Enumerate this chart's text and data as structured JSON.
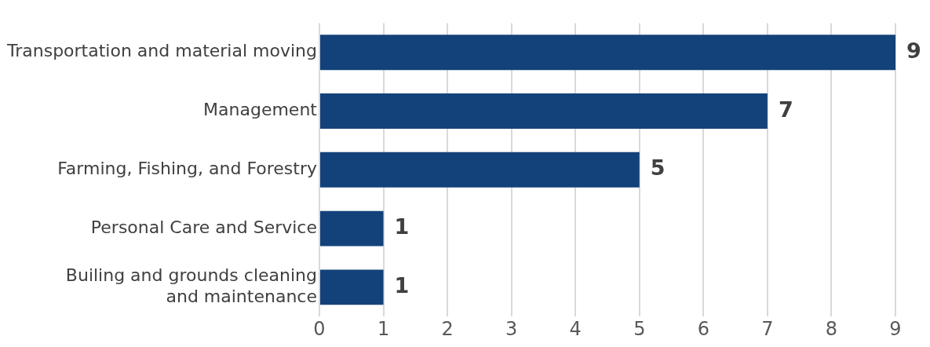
{
  "chart_data": {
    "type": "bar",
    "orientation": "horizontal",
    "categories": [
      "Transportation and material moving",
      "Management",
      "Farming, Fishing, and Forestry",
      "Personal Care and Service",
      "Builing and grounds cleaning\nand maintenance"
    ],
    "values": [
      9,
      7,
      5,
      1,
      1
    ],
    "color": "#13427a",
    "xlim": [
      0,
      9
    ],
    "xticks": [
      0,
      1,
      2,
      3,
      4,
      5,
      6,
      7,
      8,
      9
    ],
    "grid": "x",
    "data_labels": true,
    "legend": false
  }
}
